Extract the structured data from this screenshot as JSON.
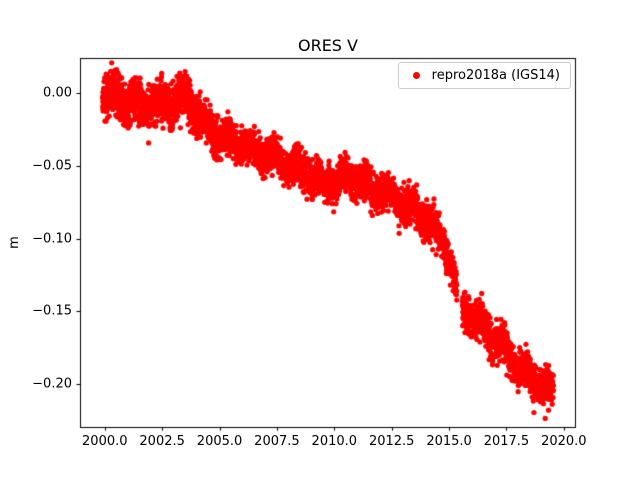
{
  "figure": {
    "background": "#ffffff",
    "axes_edge_color": "#000000"
  },
  "chart_data": {
    "type": "scatter",
    "title": "ORES V",
    "xlabel": "",
    "ylabel": "m",
    "legend_position": "upper right",
    "series": [
      {
        "name": "repro2018a (IGS14)",
        "color": "#ff0000"
      }
    ],
    "xlim": [
      1998.92,
      2020.53
    ],
    "ylim": [
      -0.2296,
      0.0246
    ],
    "xticks": [
      2000.0,
      2002.5,
      2005.0,
      2007.5,
      2010.0,
      2012.5,
      2015.0,
      2017.5,
      2020.0
    ],
    "xtick_labels": [
      "2000.0",
      "2002.5",
      "2005.0",
      "2007.5",
      "2010.0",
      "2012.5",
      "2015.0",
      "2017.5",
      "2020.0"
    ],
    "yticks": [
      0.0,
      -0.05,
      -0.1,
      -0.15,
      -0.2
    ],
    "ytick_labels": [
      "0.00",
      "−0.05",
      "−0.10",
      "−0.15",
      "−0.20"
    ],
    "x_range_of_data": [
      1999.9,
      2019.55
    ],
    "trend_anchors": [
      [
        1999.9,
        -0.001
      ],
      [
        2000.4,
        -0.003
      ],
      [
        2001.0,
        -0.005
      ],
      [
        2001.6,
        -0.007
      ],
      [
        2002.2,
        -0.008
      ],
      [
        2002.8,
        -0.006
      ],
      [
        2003.4,
        -0.004
      ],
      [
        2003.8,
        -0.008
      ],
      [
        2004.2,
        -0.018
      ],
      [
        2004.7,
        -0.026
      ],
      [
        2005.2,
        -0.03
      ],
      [
        2005.8,
        -0.033
      ],
      [
        2006.4,
        -0.038
      ],
      [
        2007.0,
        -0.043
      ],
      [
        2007.6,
        -0.047
      ],
      [
        2008.2,
        -0.051
      ],
      [
        2008.8,
        -0.055
      ],
      [
        2009.4,
        -0.06
      ],
      [
        2010.0,
        -0.063
      ],
      [
        2010.6,
        -0.057
      ],
      [
        2011.2,
        -0.062
      ],
      [
        2011.8,
        -0.066
      ],
      [
        2012.4,
        -0.07
      ],
      [
        2013.0,
        -0.075
      ],
      [
        2013.6,
        -0.081
      ],
      [
        2014.1,
        -0.088
      ],
      [
        2014.5,
        -0.096
      ],
      [
        2014.8,
        -0.104
      ],
      [
        2015.0,
        -0.112
      ],
      [
        2015.2,
        -0.125
      ],
      [
        2015.34,
        -0.138
      ],
      [
        2015.58,
        -0.148
      ],
      [
        2016.0,
        -0.154
      ],
      [
        2016.5,
        -0.161
      ],
      [
        2017.0,
        -0.169
      ],
      [
        2017.5,
        -0.178
      ],
      [
        2018.0,
        -0.188
      ],
      [
        2018.5,
        -0.195
      ],
      [
        2019.0,
        -0.2
      ],
      [
        2019.55,
        -0.206
      ]
    ],
    "gaps": [
      [
        2015.34,
        2015.58
      ]
    ],
    "n_points": 4200,
    "noise": 0.0105,
    "noise_early": 0.013,
    "noise_early_until": 2004.2,
    "seasonal_amplitude": 0.004,
    "outlier_probability": 0.015,
    "outlier_magnitude": 0.012,
    "marker_radius": 2.6,
    "seed": 42
  }
}
